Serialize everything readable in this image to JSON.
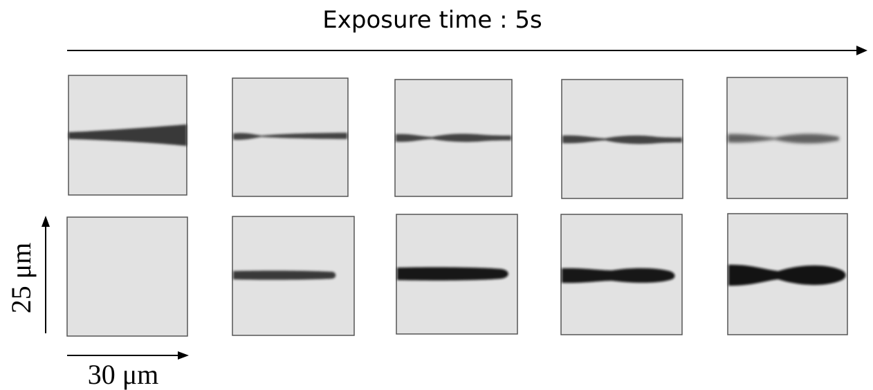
{
  "figure": {
    "title": "Exposure time : 5s",
    "scale_horizontal": "30 μm",
    "scale_vertical": "25 μm",
    "colors": {
      "frame_background": "#e2e2e2",
      "frame_border": "#555555",
      "streak": "#1a1a1a",
      "arrow": "#000000"
    },
    "rows": [
      {
        "panels": [
          {
            "streak": "wedge"
          },
          {
            "streak": "thin-bulge"
          },
          {
            "streak": "thin-bulge"
          },
          {
            "streak": "thin-bulge"
          },
          {
            "streak": "two-lobes-faint"
          }
        ]
      },
      {
        "panels": [
          {
            "streak": "none"
          },
          {
            "streak": "thin"
          },
          {
            "streak": "medium"
          },
          {
            "streak": "thick-necked"
          },
          {
            "streak": "thick-two-lobes"
          }
        ]
      }
    ]
  }
}
